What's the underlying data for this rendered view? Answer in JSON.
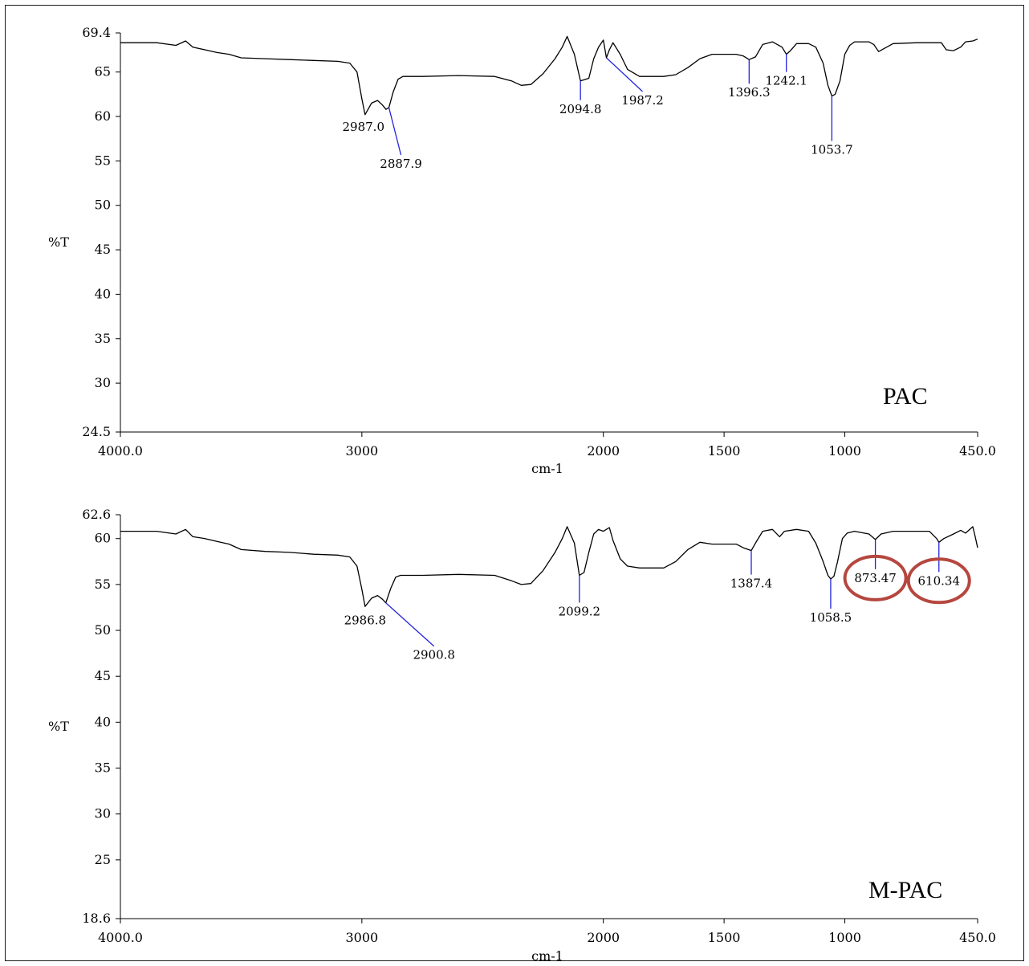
{
  "colors": {
    "spectrum": "#000000",
    "peak_marker": "#2222dd",
    "highlight": "#b5473f",
    "axis": "#000000"
  },
  "chart_data": [
    {
      "type": "line",
      "title": "",
      "panel_label": "PAC",
      "xlabel": "cm-1",
      "ylabel": "%T",
      "xlim": [
        4000,
        450
      ],
      "ylim": [
        24.5,
        69.4
      ],
      "x_ticks": [
        4000,
        3000,
        2000,
        1500,
        1000,
        450
      ],
      "x_tick_labels": [
        "4000.0",
        "3000",
        "2000",
        "1500",
        "1000",
        "450.0"
      ],
      "y_ticks": [
        69.4,
        65,
        60,
        55,
        50,
        45,
        40,
        35,
        30,
        24.5
      ],
      "y_tick_labels": [
        "69.4",
        "65",
        "60",
        "55",
        "50",
        "45",
        "40",
        "35",
        "30",
        "24.5"
      ],
      "grid": false,
      "series": [
        {
          "x": [
            4000,
            3850,
            3770,
            3730,
            3700,
            3650,
            3600,
            3550,
            3500,
            3400,
            3300,
            3200,
            3100,
            3050,
            3020,
            3000,
            2987,
            2960,
            2935,
            2915,
            2900,
            2888,
            2870,
            2850,
            2830,
            2750,
            2600,
            2450,
            2380,
            2340,
            2300,
            2250,
            2200,
            2170,
            2150,
            2120,
            2094.8,
            2060,
            2040,
            2020,
            2000,
            1987.2,
            1975,
            1960,
            1930,
            1900,
            1850,
            1750,
            1700,
            1650,
            1600,
            1550,
            1500,
            1450,
            1420,
            1396.3,
            1370,
            1340,
            1300,
            1260,
            1242.1,
            1225,
            1200,
            1150,
            1120,
            1090,
            1070,
            1053.7,
            1040,
            1020,
            1000,
            980,
            960,
            900,
            880,
            860,
            800,
            700,
            650,
            600,
            580,
            550,
            520,
            500,
            470,
            450
          ],
          "y": [
            68.3,
            68.3,
            68.0,
            68.5,
            67.8,
            67.5,
            67.2,
            67.0,
            66.6,
            66.5,
            66.4,
            66.3,
            66.2,
            66.0,
            65.0,
            62.0,
            60.2,
            61.5,
            61.8,
            61.3,
            60.8,
            61.0,
            62.8,
            64.2,
            64.5,
            64.5,
            64.6,
            64.5,
            64.0,
            63.5,
            63.6,
            64.8,
            66.5,
            67.8,
            69.0,
            67.0,
            64.0,
            64.3,
            66.5,
            67.8,
            68.6,
            66.6,
            67.5,
            68.3,
            67.0,
            65.3,
            64.5,
            64.5,
            64.7,
            65.5,
            66.5,
            67.0,
            67.0,
            67.0,
            66.8,
            66.4,
            66.7,
            68.1,
            68.4,
            67.8,
            67.0,
            67.4,
            68.2,
            68.2,
            67.8,
            66.0,
            63.5,
            62.3,
            62.5,
            64.0,
            67.0,
            68.0,
            68.4,
            68.4,
            68.1,
            67.3,
            68.2,
            68.3,
            68.3,
            68.3,
            67.5,
            67.4,
            67.8,
            68.4,
            68.5,
            68.7
          ]
        }
      ],
      "peaks": [
        {
          "label": "2987.0",
          "x": 2987,
          "y": 60.2
        },
        {
          "label": "2887.9",
          "x": 2888,
          "y": 61.0
        },
        {
          "label": "2094.8",
          "x": 2094.8,
          "y": 64.0
        },
        {
          "label": "1987.2",
          "x": 1987.2,
          "y": 66.6
        },
        {
          "label": "1396.3",
          "x": 1396.3,
          "y": 66.4
        },
        {
          "label": "1242.1",
          "x": 1242.1,
          "y": 67.0
        },
        {
          "label": "1053.7",
          "x": 1053.7,
          "y": 62.3
        }
      ]
    },
    {
      "type": "line",
      "title": "",
      "panel_label": "M-PAC",
      "xlabel": "cm-1",
      "ylabel": "%T",
      "xlim": [
        4000,
        450
      ],
      "ylim": [
        18.6,
        62.6
      ],
      "x_ticks": [
        4000,
        3000,
        2000,
        1500,
        1000,
        450
      ],
      "x_tick_labels": [
        "4000.0",
        "3000",
        "2000",
        "1500",
        "1000",
        "450.0"
      ],
      "y_ticks": [
        62.6,
        60,
        55,
        50,
        45,
        40,
        35,
        30,
        25,
        18.6
      ],
      "y_tick_labels": [
        "62.6",
        "60",
        "55",
        "50",
        "45",
        "40",
        "35",
        "30",
        "25",
        "18.6"
      ],
      "grid": false,
      "series": [
        {
          "x": [
            4000,
            3850,
            3770,
            3730,
            3700,
            3650,
            3600,
            3550,
            3500,
            3400,
            3300,
            3200,
            3100,
            3050,
            3020,
            3000,
            2986.8,
            2960,
            2935,
            2915,
            2900.8,
            2880,
            2860,
            2840,
            2750,
            2600,
            2450,
            2380,
            2340,
            2300,
            2250,
            2200,
            2170,
            2150,
            2120,
            2099.2,
            2080,
            2060,
            2040,
            2020,
            2000,
            1975,
            1960,
            1930,
            1900,
            1850,
            1750,
            1700,
            1650,
            1600,
            1550,
            1500,
            1450,
            1420,
            1387.4,
            1370,
            1340,
            1300,
            1270,
            1250,
            1200,
            1150,
            1120,
            1090,
            1070,
            1058.5,
            1045,
            1030,
            1010,
            990,
            960,
            900,
            873.47,
            850,
            800,
            700,
            650,
            620,
            610.34,
            590,
            550,
            520,
            500,
            470,
            460,
            450
          ],
          "y": [
            60.8,
            60.8,
            60.5,
            61.0,
            60.2,
            60.0,
            59.7,
            59.4,
            58.8,
            58.6,
            58.5,
            58.3,
            58.2,
            58.0,
            57.0,
            54.5,
            52.6,
            53.5,
            53.8,
            53.4,
            53.0,
            54.6,
            55.8,
            56.0,
            56.0,
            56.1,
            56.0,
            55.4,
            55.0,
            55.1,
            56.5,
            58.5,
            60.0,
            61.3,
            59.5,
            56.0,
            56.3,
            58.5,
            60.5,
            61.0,
            60.8,
            61.2,
            59.8,
            57.8,
            57.0,
            56.8,
            56.8,
            57.5,
            58.8,
            59.6,
            59.4,
            59.4,
            59.4,
            59.0,
            58.7,
            59.5,
            60.8,
            61.0,
            60.2,
            60.8,
            61.0,
            60.8,
            59.5,
            57.5,
            56.0,
            55.6,
            55.9,
            57.5,
            60.0,
            60.6,
            60.8,
            60.5,
            59.9,
            60.5,
            60.8,
            60.8,
            60.8,
            60.0,
            59.6,
            60.0,
            60.5,
            60.9,
            60.6,
            61.3,
            60.2,
            59.0
          ]
        }
      ],
      "peaks": [
        {
          "label": "2986.8",
          "x": 2986.8,
          "y": 52.6
        },
        {
          "label": "2900.8",
          "x": 2900.8,
          "y": 53.0
        },
        {
          "label": "2099.2",
          "x": 2099.2,
          "y": 56.0
        },
        {
          "label": "1387.4",
          "x": 1387.4,
          "y": 58.7
        },
        {
          "label": "1058.5",
          "x": 1058.5,
          "y": 55.6
        },
        {
          "label": "873.47",
          "x": 873.47,
          "y": 59.9,
          "highlighted": true
        },
        {
          "label": "610.34",
          "x": 610.34,
          "y": 59.6,
          "highlighted": true
        }
      ]
    }
  ]
}
